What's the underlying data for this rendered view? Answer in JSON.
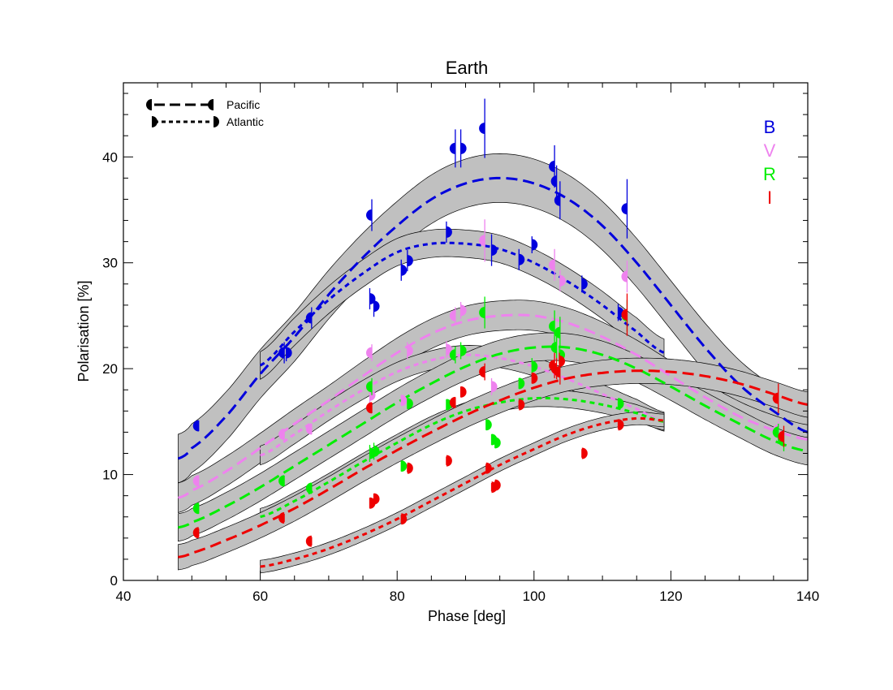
{
  "chart_data": {
    "type": "line",
    "title": "Earth",
    "xlabel": "Phase [deg]",
    "ylabel": "Polarisation [%]",
    "xlim": [
      40,
      140
    ],
    "ylim": [
      0,
      47
    ],
    "xticks": [
      40,
      60,
      80,
      100,
      120,
      140
    ],
    "yticks": [
      0,
      10,
      20,
      30,
      40
    ],
    "grid": false,
    "legend": {
      "placement": "top-left",
      "entries": [
        {
          "name": "Pacific",
          "style": "long-dash",
          "marker": "left-half-circle"
        },
        {
          "name": "Atlantic",
          "style": "short-dash",
          "marker": "right-half-circle"
        }
      ]
    },
    "bands": [
      {
        "name": "B",
        "color": "#0000dd"
      },
      {
        "name": "V",
        "color": "#ee82ee"
      },
      {
        "name": "R",
        "color": "#00ee00"
      },
      {
        "name": "I",
        "color": "#ee0000"
      }
    ],
    "series": [
      {
        "band": "B",
        "location": "Pacific",
        "color": "#0000dd",
        "model": {
          "x": [
            48,
            50,
            55,
            60,
            65,
            70,
            75,
            80,
            85,
            90,
            95,
            100,
            105,
            110,
            115,
            120,
            125,
            130,
            135,
            140
          ],
          "y": [
            11.5,
            12.5,
            15.5,
            19.5,
            23.0,
            27.0,
            30.5,
            33.5,
            36.0,
            37.5,
            38.0,
            37.5,
            36.0,
            33.5,
            30.0,
            26.0,
            22.0,
            18.5,
            16.0,
            14.0
          ],
          "band_width": 2.3
        },
        "points": [
          {
            "x": 51,
            "y": 14.6,
            "err": 0.5
          },
          {
            "x": 63.5,
            "y": 21.5,
            "err": 1.0
          },
          {
            "x": 67.5,
            "y": 24.8,
            "err": 1.0
          },
          {
            "x": 76.3,
            "y": 34.5,
            "err": 1.5
          },
          {
            "x": 88.5,
            "y": 40.8,
            "err": 1.8
          },
          {
            "x": 92.8,
            "y": 42.7,
            "err": 2.8
          },
          {
            "x": 103,
            "y": 39.1,
            "err": 2.0
          },
          {
            "x": 103.3,
            "y": 37.7,
            "err": 1.5
          },
          {
            "x": 103.8,
            "y": 35.9,
            "err": 1.8
          },
          {
            "x": 113.6,
            "y": 35.1,
            "err": 2.8
          }
        ]
      },
      {
        "band": "B",
        "location": "Atlantic",
        "color": "#0000dd",
        "model": {
          "x": [
            60,
            65,
            70,
            75,
            80,
            85,
            90,
            95,
            100,
            105,
            110,
            115,
            119
          ],
          "y": [
            20.3,
            23.5,
            26.5,
            29.0,
            31.0,
            31.8,
            31.8,
            31.3,
            30.0,
            28.2,
            26.0,
            23.5,
            21.5
          ],
          "band_width": 1.3
        },
        "points": [
          {
            "x": 63.8,
            "y": 21.5,
            "err": 0.8
          },
          {
            "x": 76,
            "y": 26.6,
            "err": 1.0
          },
          {
            "x": 76.6,
            "y": 25.9,
            "err": 1.0
          },
          {
            "x": 80.6,
            "y": 29.3,
            "err": 1.0
          },
          {
            "x": 81.5,
            "y": 30.2,
            "err": 1.0
          },
          {
            "x": 87.2,
            "y": 32.9,
            "err": 1.0
          },
          {
            "x": 89.3,
            "y": 40.8,
            "err": 1.8
          },
          {
            "x": 93.8,
            "y": 31.2,
            "err": 1.5
          },
          {
            "x": 97.8,
            "y": 30.3,
            "err": 1.0
          },
          {
            "x": 99.7,
            "y": 31.7,
            "err": 0.8
          },
          {
            "x": 107,
            "y": 28.0,
            "err": 0.8
          },
          {
            "x": 112.3,
            "y": 25.3,
            "err": 0.8
          }
        ]
      },
      {
        "band": "V",
        "location": "Pacific",
        "color": "#ee82ee",
        "model": {
          "x": [
            48,
            50,
            55,
            60,
            65,
            70,
            75,
            80,
            85,
            90,
            95,
            100,
            105,
            110,
            115,
            120,
            125,
            130,
            135,
            140
          ],
          "y": [
            7.8,
            8.5,
            10.3,
            12.5,
            14.8,
            17.0,
            19.3,
            21.5,
            23.3,
            24.5,
            25.0,
            25.0,
            24.3,
            23.0,
            21.3,
            19.3,
            17.3,
            15.5,
            14.2,
            13.3
          ],
          "band_width": 1.4
        },
        "points": [
          {
            "x": 51,
            "y": 9.4,
            "err": 0.5
          },
          {
            "x": 63.5,
            "y": 13.8,
            "err": 0.5
          },
          {
            "x": 67.5,
            "y": 14.3,
            "err": 0.5
          },
          {
            "x": 76.3,
            "y": 21.5,
            "err": 0.8
          },
          {
            "x": 88.5,
            "y": 25.0,
            "err": 0.8
          },
          {
            "x": 92.8,
            "y": 32.1,
            "err": 2.0
          },
          {
            "x": 103,
            "y": 29.8,
            "err": 1.5
          },
          {
            "x": 113.6,
            "y": 28.7,
            "err": 1.5
          },
          {
            "x": 135.7,
            "y": 14.2,
            "err": 0.8
          }
        ]
      },
      {
        "band": "V",
        "location": "Atlantic",
        "color": "#ee82ee",
        "model": {
          "x": [
            60,
            65,
            70,
            75,
            80,
            85,
            90,
            95,
            100,
            105,
            110,
            115,
            119
          ],
          "y": [
            11.8,
            13.8,
            16.0,
            18.0,
            19.7,
            20.8,
            21.3,
            21.0,
            20.2,
            19.0,
            17.6,
            16.2,
            15.0
          ],
          "band_width": 0.9
        },
        "points": [
          {
            "x": 76,
            "y": 17.5,
            "err": 0.8
          },
          {
            "x": 80.6,
            "y": 17.0,
            "err": 0.5
          },
          {
            "x": 81.5,
            "y": 21.7,
            "err": 0.8
          },
          {
            "x": 87.2,
            "y": 21.8,
            "err": 0.8
          },
          {
            "x": 89.3,
            "y": 25.5,
            "err": 0.8
          },
          {
            "x": 93.8,
            "y": 18.3,
            "err": 0.8
          },
          {
            "x": 103.8,
            "y": 28.3,
            "err": 1.0
          }
        ]
      },
      {
        "band": "R",
        "location": "Pacific",
        "color": "#00ee00",
        "model": {
          "x": [
            48,
            50,
            55,
            60,
            65,
            70,
            75,
            80,
            85,
            90,
            95,
            100,
            105,
            110,
            115,
            120,
            125,
            130,
            135,
            140
          ],
          "y": [
            5.0,
            5.5,
            7.0,
            8.8,
            10.8,
            12.8,
            14.8,
            16.8,
            18.6,
            20.2,
            21.4,
            22.0,
            22.0,
            21.3,
            20.0,
            18.3,
            16.5,
            14.8,
            13.2,
            12.2
          ],
          "band_width": 1.3
        },
        "points": [
          {
            "x": 51,
            "y": 6.8,
            "err": 0.5
          },
          {
            "x": 63.5,
            "y": 9.4,
            "err": 0.5
          },
          {
            "x": 67.5,
            "y": 8.7,
            "err": 0.5
          },
          {
            "x": 76.3,
            "y": 18.3,
            "err": 0.8
          },
          {
            "x": 88.5,
            "y": 21.3,
            "err": 0.8
          },
          {
            "x": 92.8,
            "y": 25.3,
            "err": 1.5
          },
          {
            "x": 103,
            "y": 24.0,
            "err": 1.5
          },
          {
            "x": 103.3,
            "y": 22.0,
            "err": 1.0
          },
          {
            "x": 103.8,
            "y": 23.4,
            "err": 1.5
          },
          {
            "x": 113.6,
            "y": 25.0,
            "err": 1.5
          },
          {
            "x": 135.7,
            "y": 14.0,
            "err": 0.8
          },
          {
            "x": 136.5,
            "y": 13.2,
            "err": 1.0
          }
        ]
      },
      {
        "band": "R",
        "location": "Atlantic",
        "color": "#00ee00",
        "model": {
          "x": [
            60,
            65,
            70,
            75,
            80,
            85,
            90,
            95,
            100,
            105,
            110,
            115,
            119
          ],
          "y": [
            6.0,
            7.5,
            9.3,
            11.2,
            13.0,
            14.7,
            16.0,
            16.8,
            17.2,
            17.1,
            16.6,
            15.8,
            15.0
          ],
          "band_width": 0.8
        },
        "points": [
          {
            "x": 76,
            "y": 12.0,
            "err": 0.8
          },
          {
            "x": 76.6,
            "y": 12.2,
            "err": 0.8
          },
          {
            "x": 80.6,
            "y": 10.8,
            "err": 0.5
          },
          {
            "x": 81.5,
            "y": 16.7,
            "err": 0.5
          },
          {
            "x": 87.2,
            "y": 16.6,
            "err": 0.5
          },
          {
            "x": 89.3,
            "y": 21.7,
            "err": 0.8
          },
          {
            "x": 93,
            "y": 14.7,
            "err": 0.5
          },
          {
            "x": 93.8,
            "y": 13.3,
            "err": 0.5
          },
          {
            "x": 94.3,
            "y": 13.0,
            "err": 0.5
          },
          {
            "x": 97.8,
            "y": 18.6,
            "err": 0.5
          },
          {
            "x": 99.7,
            "y": 20.2,
            "err": 0.8
          },
          {
            "x": 103.7,
            "y": 21.3,
            "err": 0.8
          },
          {
            "x": 112.3,
            "y": 16.7,
            "err": 0.5
          }
        ]
      },
      {
        "band": "I",
        "location": "Pacific",
        "color": "#ee0000",
        "model": {
          "x": [
            48,
            50,
            55,
            60,
            65,
            70,
            75,
            80,
            85,
            90,
            95,
            100,
            105,
            110,
            115,
            120,
            125,
            130,
            135,
            140
          ],
          "y": [
            2.2,
            2.6,
            3.8,
            5.2,
            6.8,
            8.6,
            10.5,
            12.3,
            14.0,
            15.6,
            17.0,
            18.2,
            19.1,
            19.6,
            19.8,
            19.7,
            19.3,
            18.6,
            17.6,
            16.6
          ],
          "band_width": 1.2
        },
        "points": [
          {
            "x": 51,
            "y": 4.5,
            "err": 0.4
          },
          {
            "x": 63.5,
            "y": 5.9,
            "err": 0.4
          },
          {
            "x": 67.5,
            "y": 3.7,
            "err": 0.4
          },
          {
            "x": 76.3,
            "y": 16.3,
            "err": 0.5
          },
          {
            "x": 88.5,
            "y": 16.8,
            "err": 0.5
          },
          {
            "x": 92.8,
            "y": 19.7,
            "err": 0.8
          },
          {
            "x": 103,
            "y": 20.3,
            "err": 1.2
          },
          {
            "x": 103.3,
            "y": 20.0,
            "err": 1.0
          },
          {
            "x": 103.8,
            "y": 19.7,
            "err": 1.2
          },
          {
            "x": 113.6,
            "y": 25.1,
            "err": 2.0
          },
          {
            "x": 135.7,
            "y": 17.2,
            "err": 1.4
          },
          {
            "x": 136.5,
            "y": 13.6,
            "err": 1.0
          }
        ]
      },
      {
        "band": "I",
        "location": "Atlantic",
        "color": "#ee0000",
        "model": {
          "x": [
            60,
            65,
            70,
            75,
            80,
            85,
            90,
            95,
            100,
            105,
            110,
            115,
            119
          ],
          "y": [
            1.3,
            2.0,
            3.0,
            4.3,
            5.8,
            7.5,
            9.2,
            10.9,
            12.4,
            13.8,
            14.8,
            15.3,
            15.1
          ],
          "band_width": 0.6
        },
        "points": [
          {
            "x": 76,
            "y": 7.3,
            "err": 0.5
          },
          {
            "x": 76.6,
            "y": 7.7,
            "err": 0.5
          },
          {
            "x": 80.6,
            "y": 5.8,
            "err": 0.4
          },
          {
            "x": 81.5,
            "y": 10.6,
            "err": 0.4
          },
          {
            "x": 87.2,
            "y": 11.3,
            "err": 0.4
          },
          {
            "x": 89.3,
            "y": 17.8,
            "err": 0.5
          },
          {
            "x": 93,
            "y": 10.6,
            "err": 0.4
          },
          {
            "x": 93.8,
            "y": 8.8,
            "err": 0.4
          },
          {
            "x": 94.3,
            "y": 9.0,
            "err": 0.4
          },
          {
            "x": 97.8,
            "y": 16.6,
            "err": 0.4
          },
          {
            "x": 99.7,
            "y": 19.1,
            "err": 0.5
          },
          {
            "x": 103.7,
            "y": 20.7,
            "err": 0.8
          },
          {
            "x": 107,
            "y": 12.0,
            "err": 0.4
          },
          {
            "x": 112.3,
            "y": 14.7,
            "err": 0.4
          }
        ]
      }
    ]
  }
}
